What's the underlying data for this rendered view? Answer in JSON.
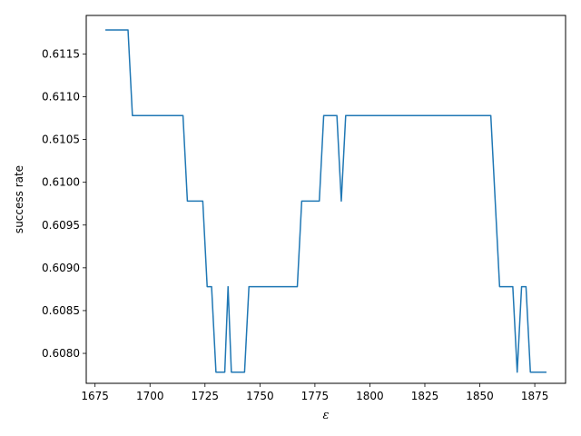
{
  "chart_data": {
    "type": "line",
    "title": "",
    "xlabel": "ε",
    "ylabel": "success rate",
    "xlim": [
      1671,
      1889
    ],
    "ylim": [
      0.60765,
      0.61195
    ],
    "xticks": [
      1675,
      1700,
      1725,
      1750,
      1775,
      1800,
      1825,
      1850,
      1875
    ],
    "xtick_labels": [
      "1675",
      "1700",
      "1725",
      "1750",
      "1775",
      "1800",
      "1825",
      "1850",
      "1875"
    ],
    "yticks": [
      0.608,
      0.6085,
      0.609,
      0.6095,
      0.61,
      0.6105,
      0.611,
      0.6115
    ],
    "ytick_labels": [
      "0.6080",
      "0.6085",
      "0.6090",
      "0.6095",
      "0.6100",
      "0.6105",
      "0.6110",
      "0.6115"
    ],
    "grid": false,
    "series": [
      {
        "color": "#1f77b4",
        "points": [
          [
            1680,
            0.61178
          ],
          [
            1690,
            0.61178
          ],
          [
            1692,
            0.61078
          ],
          [
            1715,
            0.61078
          ],
          [
            1717,
            0.60978
          ],
          [
            1724,
            0.60978
          ],
          [
            1726,
            0.60878
          ],
          [
            1728,
            0.60878
          ],
          [
            1730,
            0.60778
          ],
          [
            1734,
            0.60778
          ],
          [
            1735.5,
            0.60878
          ],
          [
            1737,
            0.60778
          ],
          [
            1743,
            0.60778
          ],
          [
            1745,
            0.60878
          ],
          [
            1767,
            0.60878
          ],
          [
            1769,
            0.60978
          ],
          [
            1777,
            0.60978
          ],
          [
            1779,
            0.61078
          ],
          [
            1785,
            0.61078
          ],
          [
            1787,
            0.60978
          ],
          [
            1789,
            0.61078
          ],
          [
            1855,
            0.61078
          ],
          [
            1859,
            0.60878
          ],
          [
            1865,
            0.60878
          ],
          [
            1867,
            0.60778
          ],
          [
            1869,
            0.60878
          ],
          [
            1871,
            0.60878
          ],
          [
            1873,
            0.60778
          ],
          [
            1880,
            0.60778
          ]
        ]
      }
    ]
  }
}
